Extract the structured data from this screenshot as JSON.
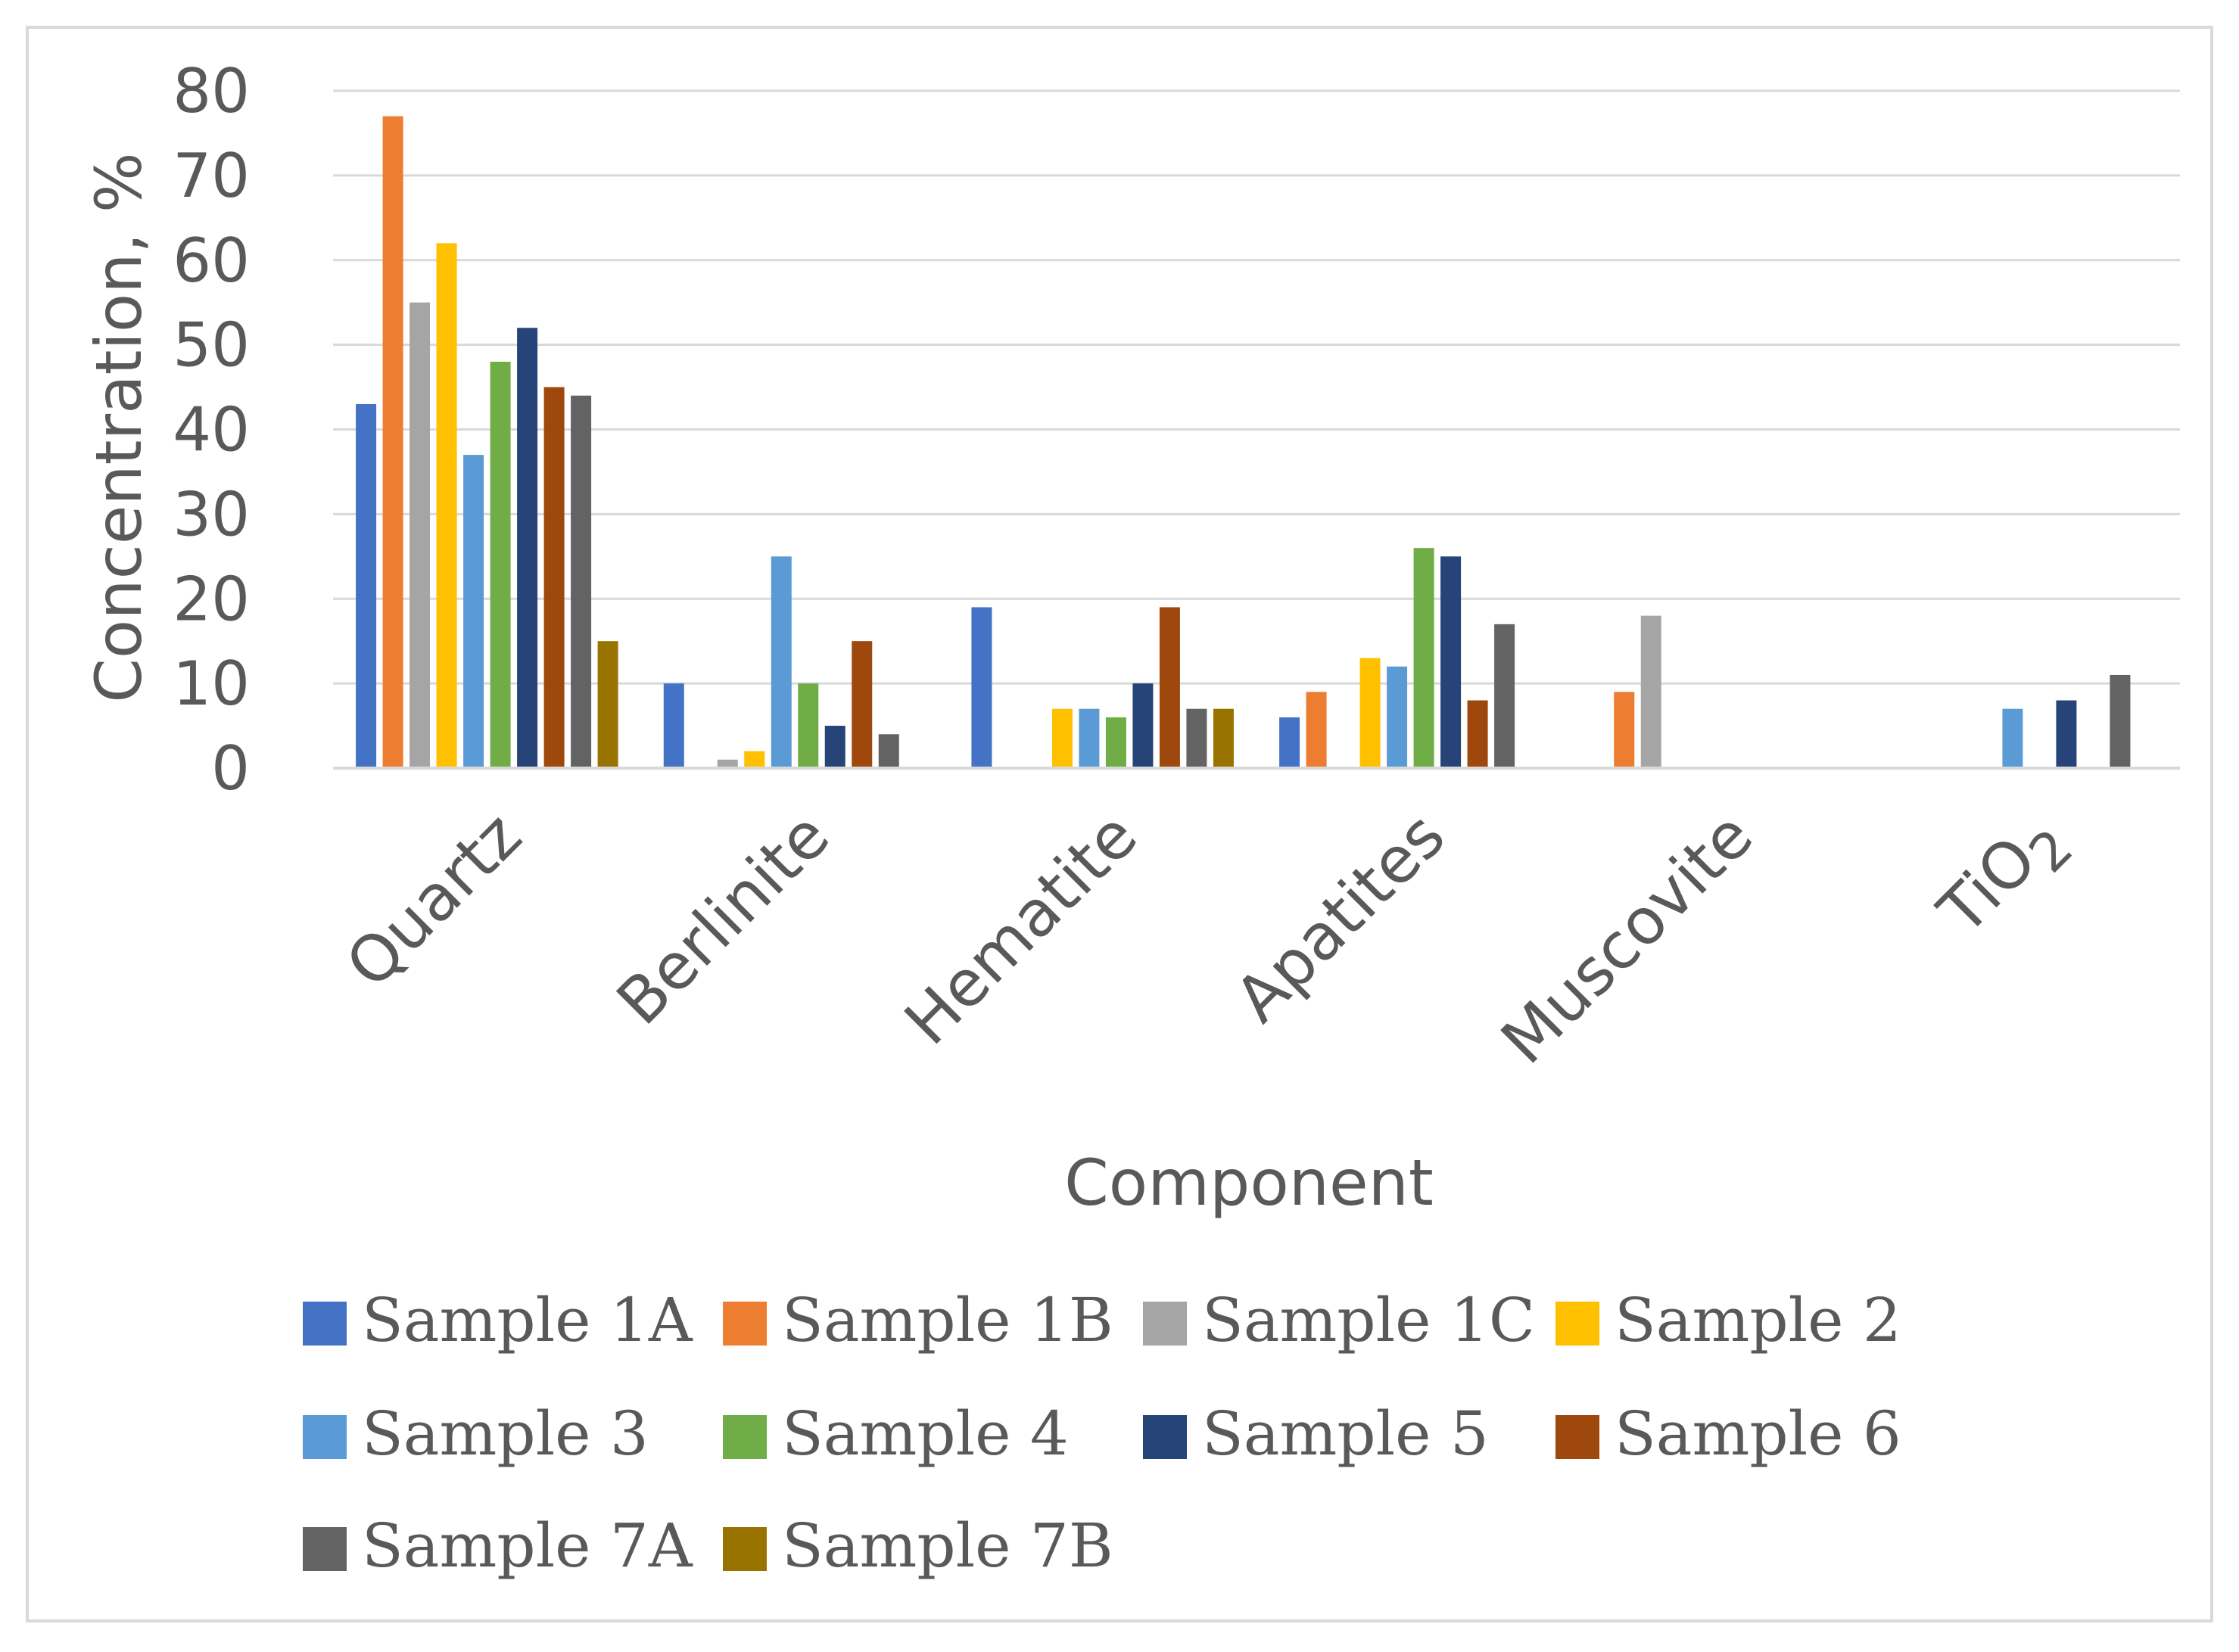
{
  "chart_data": {
    "type": "bar",
    "title": "",
    "xlabel": "Component",
    "ylabel": "Concentration, %",
    "ylim": [
      0,
      80
    ],
    "yticks": [
      0,
      10,
      20,
      30,
      40,
      50,
      60,
      70,
      80
    ],
    "grid": true,
    "legend_position": "bottom",
    "categories": [
      "Quartz",
      "Berlinite",
      "Hematite",
      "Apatites",
      "Muscovite",
      "TiO2"
    ],
    "category_labels": [
      {
        "main": "Quartz",
        "sub": ""
      },
      {
        "main": "Berlinite",
        "sub": ""
      },
      {
        "main": "Hematite",
        "sub": ""
      },
      {
        "main": "Apatites",
        "sub": ""
      },
      {
        "main": "Muscovite",
        "sub": ""
      },
      {
        "main": "TiO",
        "sub": "2"
      }
    ],
    "series": [
      {
        "name": "Sample 1A",
        "color": "#4472C4",
        "values": [
          43,
          10,
          19,
          6,
          0,
          0
        ]
      },
      {
        "name": "Sample 1B",
        "color": "#ED7D31",
        "values": [
          77,
          0,
          0,
          9,
          9,
          0
        ]
      },
      {
        "name": "Sample 1C",
        "color": "#A5A5A5",
        "values": [
          55,
          1,
          0,
          0,
          18,
          0
        ]
      },
      {
        "name": "Sample 2",
        "color": "#FFC000",
        "values": [
          62,
          2,
          7,
          13,
          0,
          0
        ]
      },
      {
        "name": "Sample 3",
        "color": "#5B9BD5",
        "values": [
          37,
          25,
          7,
          12,
          0,
          7
        ]
      },
      {
        "name": "Sample 4",
        "color": "#70AD47",
        "values": [
          48,
          10,
          6,
          26,
          0,
          0
        ]
      },
      {
        "name": "Sample 5",
        "color": "#264478",
        "values": [
          52,
          5,
          10,
          25,
          0,
          8
        ]
      },
      {
        "name": "Sample 6",
        "color": "#9E480E",
        "values": [
          45,
          15,
          19,
          8,
          0,
          0
        ]
      },
      {
        "name": "Sample 7A",
        "color": "#636363",
        "values": [
          44,
          4,
          7,
          17,
          0,
          11
        ]
      },
      {
        "name": "Sample 7B",
        "color": "#997300",
        "values": [
          15,
          0,
          7,
          0,
          0,
          0
        ]
      }
    ]
  }
}
